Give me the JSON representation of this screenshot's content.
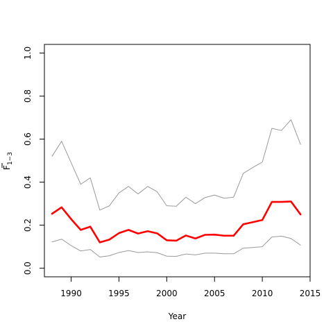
{
  "chart_data": {
    "type": "line",
    "title": "",
    "xlabel": "Year",
    "ylabel": {
      "base": "F",
      "subscript": "1−3"
    },
    "xlim": [
      1987.2,
      2015
    ],
    "ylim": [
      -0.04,
      1.04
    ],
    "x_ticks": [
      1990,
      1995,
      2000,
      2005,
      2010,
      2015
    ],
    "y_ticks": [
      0.0,
      0.2,
      0.4,
      0.6,
      0.8,
      1.0
    ],
    "y_tick_labels": [
      "0.0",
      "0.2",
      "0.4",
      "0.6",
      "0.8",
      "1.0"
    ],
    "grid": false,
    "legend": "none",
    "x": [
      1988,
      1989,
      1990,
      1991,
      1992,
      1993,
      1994,
      1995,
      1996,
      1997,
      1998,
      1999,
      2000,
      2001,
      2002,
      2003,
      2004,
      2005,
      2006,
      2007,
      2008,
      2009,
      2010,
      2011,
      2012,
      2013,
      2014
    ],
    "series": [
      {
        "role": "upper",
        "color": "#999999",
        "values": [
          0.52,
          0.59,
          0.49,
          0.39,
          0.42,
          0.27,
          0.29,
          0.35,
          0.38,
          0.345,
          0.38,
          0.355,
          0.29,
          0.288,
          0.33,
          0.3,
          0.328,
          0.34,
          0.325,
          0.33,
          0.44,
          0.468,
          0.493,
          0.65,
          0.64,
          0.69,
          0.575
        ]
      },
      {
        "role": "estimate",
        "color": "#ff0000",
        "values": [
          0.253,
          0.283,
          0.228,
          0.178,
          0.193,
          0.12,
          0.133,
          0.163,
          0.178,
          0.161,
          0.172,
          0.162,
          0.13,
          0.128,
          0.152,
          0.138,
          0.155,
          0.156,
          0.151,
          0.151,
          0.204,
          0.214,
          0.224,
          0.308,
          0.308,
          0.31,
          0.25
        ]
      },
      {
        "role": "lower",
        "color": "#999999",
        "values": [
          0.122,
          0.135,
          0.105,
          0.08,
          0.087,
          0.052,
          0.058,
          0.073,
          0.082,
          0.073,
          0.076,
          0.072,
          0.056,
          0.055,
          0.066,
          0.062,
          0.07,
          0.07,
          0.067,
          0.067,
          0.093,
          0.096,
          0.1,
          0.145,
          0.149,
          0.138,
          0.107
        ]
      }
    ]
  }
}
